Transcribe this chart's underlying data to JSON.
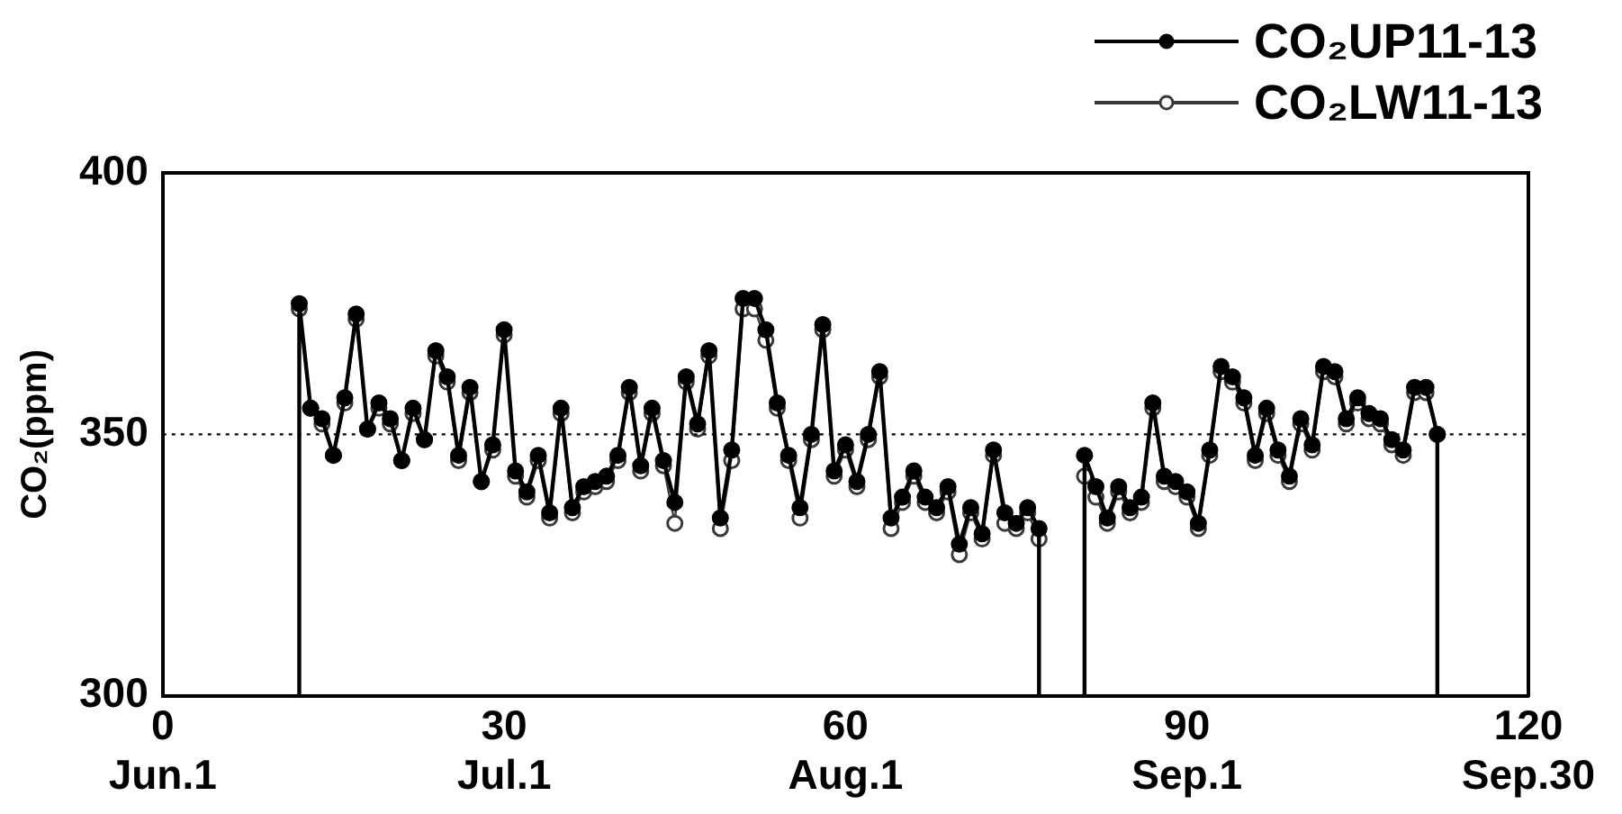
{
  "chart_data": {
    "type": "line",
    "ylabel": "CO₂(ppm)",
    "legend": "top right",
    "marker": "circle",
    "line_style": "solid",
    "grid": false,
    "xlim": [
      0,
      120
    ],
    "ylim": [
      300,
      400
    ],
    "xticks": [
      0,
      30,
      60,
      90,
      120
    ],
    "annotations": [
      "Jun.1",
      "Jul.1",
      "Aug.1",
      "Sep.1",
      "Sep.30"
    ],
    "yticks": [
      300,
      350,
      400
    ],
    "ref_lines": [
      {
        "axis": "y",
        "value": 350,
        "line_style": "dotted",
        "color": "#000000"
      }
    ],
    "x": [
      12,
      12,
      13,
      14,
      15,
      16,
      17,
      18,
      19,
      20,
      21,
      22,
      23,
      24,
      25,
      26,
      27,
      28,
      29,
      30,
      31,
      32,
      33,
      34,
      35,
      36,
      37,
      38,
      39,
      40,
      41,
      42,
      43,
      44,
      45,
      46,
      47,
      48,
      49,
      50,
      51,
      52,
      53,
      54,
      55,
      56,
      57,
      58,
      59,
      60,
      61,
      62,
      63,
      64,
      65,
      66,
      67,
      68,
      69,
      70,
      71,
      72,
      73,
      74,
      75,
      76,
      77,
      77,
      79,
      81,
      81,
      82,
      83,
      84,
      85,
      86,
      87,
      88,
      89,
      90,
      91,
      92,
      93,
      94,
      95,
      96,
      97,
      98,
      99,
      100,
      101,
      102,
      103,
      104,
      105,
      106,
      107,
      108,
      109,
      110,
      111,
      112,
      112
    ],
    "series": [
      {
        "name": "CO₂UP11-13",
        "color": "#000000",
        "values": [
          300,
          375,
          355,
          353,
          346,
          357,
          373,
          351,
          356,
          353,
          345,
          355,
          349,
          366,
          361,
          346,
          359,
          341,
          348,
          370,
          343,
          339,
          346,
          335,
          355,
          336,
          340,
          341,
          342,
          346,
          359,
          344,
          355,
          345,
          337,
          361,
          352,
          366,
          334,
          347,
          376,
          376,
          370,
          356,
          346,
          336,
          350,
          371,
          343,
          348,
          341,
          350,
          362,
          334,
          338,
          343,
          338,
          336,
          340,
          329,
          336,
          331,
          347,
          335,
          333,
          336,
          332,
          300,
          null,
          300,
          346,
          340,
          334,
          340,
          336,
          338,
          356,
          342,
          341,
          339,
          333,
          347,
          363,
          361,
          357,
          346,
          355,
          347,
          342,
          353,
          348,
          363,
          362,
          353,
          357,
          354,
          353,
          349,
          347,
          359,
          359,
          350,
          300
        ]
      },
      {
        "name": "CO₂LW11-13",
        "color": "#3a3a3a",
        "values": [
          300,
          374,
          355,
          352,
          346,
          356,
          372,
          351,
          355,
          352,
          345,
          354,
          349,
          365,
          360,
          345,
          358,
          341,
          347,
          369,
          342,
          338,
          345,
          334,
          354,
          335,
          339,
          340,
          341,
          345,
          358,
          343,
          354,
          344,
          333,
          360,
          351,
          365,
          332,
          345,
          374,
          374,
          368,
          355,
          345,
          334,
          349,
          370,
          342,
          347,
          340,
          349,
          361,
          332,
          337,
          342,
          337,
          335,
          339,
          327,
          335,
          330,
          346,
          333,
          332,
          335,
          330,
          300,
          null,
          300,
          342,
          338,
          333,
          339,
          335,
          337,
          355,
          341,
          340,
          338,
          332,
          346,
          362,
          360,
          356,
          345,
          354,
          346,
          341,
          352,
          347,
          362,
          361,
          352,
          356,
          353,
          352,
          348,
          346,
          358,
          358,
          350,
          300
        ]
      }
    ]
  }
}
